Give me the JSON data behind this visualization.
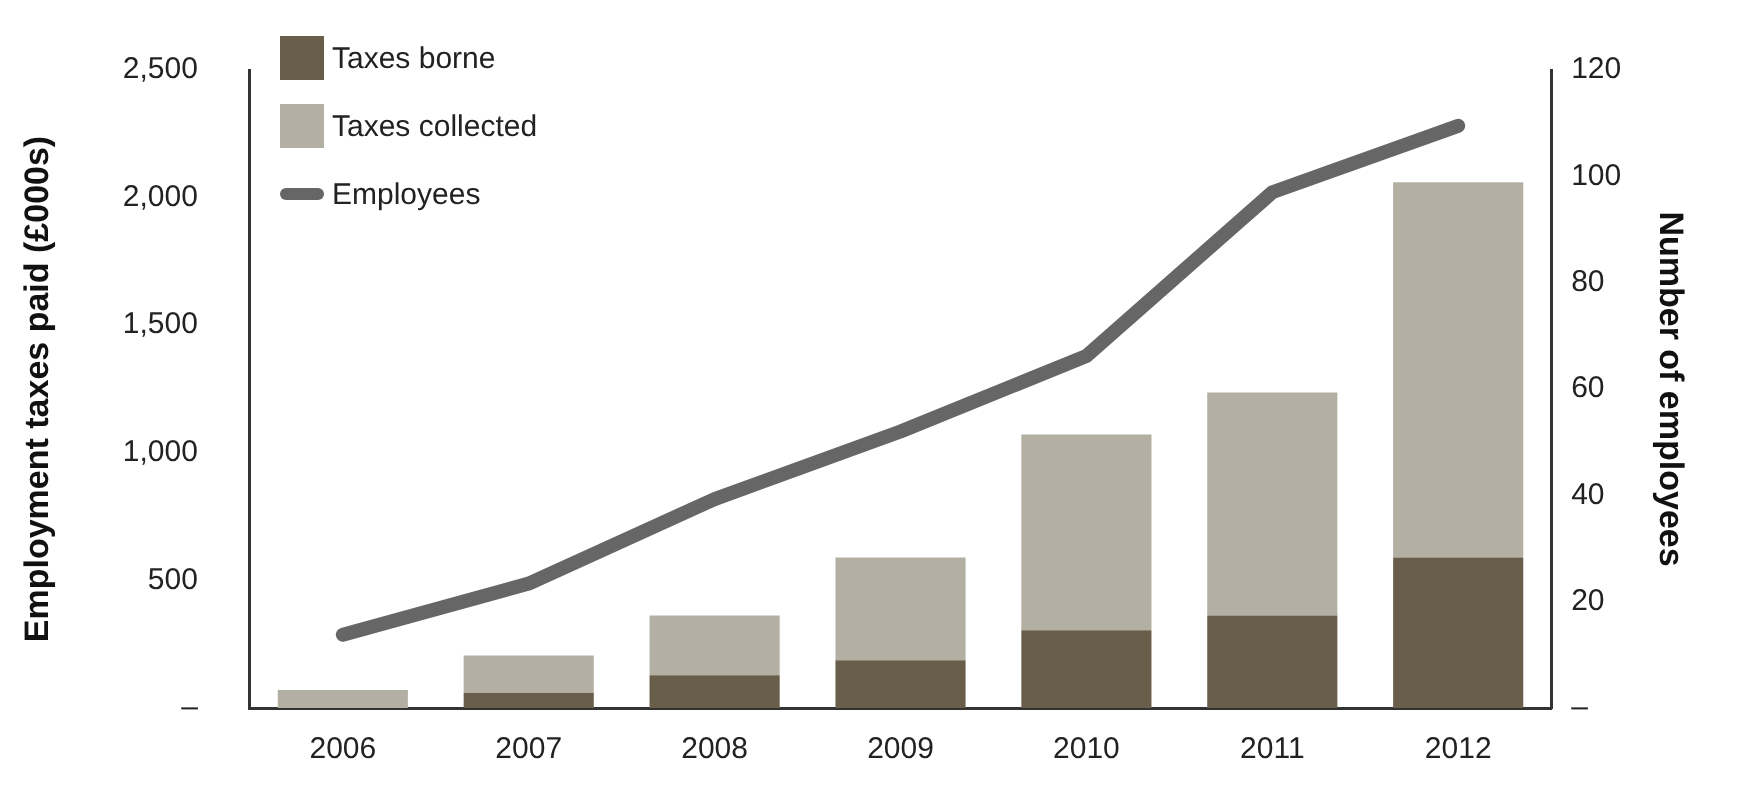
{
  "chart_data": {
    "type": "bar",
    "stacked": true,
    "ylabel": "Employment taxes paid (£000s)",
    "y2label": "Number of employees",
    "categories": [
      "2006",
      "2007",
      "2008",
      "2009",
      "2010",
      "2011",
      "2012"
    ],
    "series": [
      {
        "name": "Taxes borne",
        "color": "#695e4a",
        "values": [
          0,
          59,
          128,
          187,
          305,
          362,
          590
        ]
      },
      {
        "name": "Taxes collected",
        "color": "#b3afa3",
        "values": [
          71,
          147,
          234,
          403,
          767,
          874,
          1470
        ]
      },
      {
        "name": "Employees",
        "type": "line",
        "axis": "y2",
        "color": "#666666",
        "values": [
          13.8,
          23.4,
          39.3,
          52,
          66.2,
          97,
          109.5
        ]
      }
    ],
    "ylim": [
      0,
      2500
    ],
    "yticks": [
      {
        "value": 0,
        "label": "–"
      },
      500,
      {
        "value": 1000,
        "label": "1,000"
      },
      {
        "value": 1500,
        "label": "1,500"
      },
      {
        "value": 2000,
        "label": "2,000"
      },
      {
        "value": 2500,
        "label": "2,500"
      }
    ],
    "y2lim": [
      0,
      120
    ],
    "y2ticks": [
      {
        "value": 0,
        "label": "–"
      },
      20,
      40,
      60,
      80,
      100,
      120
    ],
    "grid": false,
    "legend": "top left",
    "marker": "none"
  }
}
